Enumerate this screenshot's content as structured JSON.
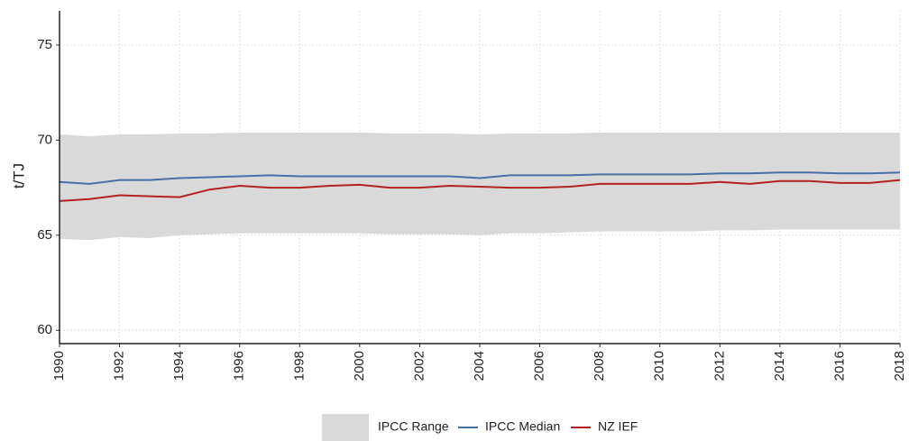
{
  "chart_data": {
    "type": "line",
    "y_label": "t/TJ",
    "x": [
      1990,
      1991,
      1992,
      1993,
      1994,
      1995,
      1996,
      1997,
      1998,
      1999,
      2000,
      2001,
      2002,
      2003,
      2004,
      2005,
      2006,
      2007,
      2008,
      2009,
      2010,
      2011,
      2012,
      2013,
      2014,
      2015,
      2016,
      2017,
      2018
    ],
    "series": [
      {
        "name": "IPCC Range",
        "color": "#d9d9d9",
        "upper": [
          70.3,
          70.2,
          70.3,
          70.3,
          70.35,
          70.35,
          70.4,
          70.4,
          70.4,
          70.4,
          70.4,
          70.35,
          70.35,
          70.35,
          70.3,
          70.35,
          70.35,
          70.35,
          70.4,
          70.4,
          70.4,
          70.4,
          70.4,
          70.4,
          70.4,
          70.4,
          70.4,
          70.4,
          70.4
        ],
        "lower": [
          64.8,
          64.75,
          64.9,
          64.85,
          65.0,
          65.05,
          65.1,
          65.1,
          65.1,
          65.1,
          65.1,
          65.05,
          65.05,
          65.05,
          65.0,
          65.1,
          65.1,
          65.15,
          65.2,
          65.2,
          65.2,
          65.2,
          65.25,
          65.25,
          65.3,
          65.3,
          65.3,
          65.3,
          65.3
        ]
      },
      {
        "name": "IPCC Median",
        "color": "#4a6fa5",
        "values": [
          67.8,
          67.7,
          67.9,
          67.9,
          68.0,
          68.05,
          68.1,
          68.15,
          68.1,
          68.1,
          68.1,
          68.1,
          68.1,
          68.1,
          68.0,
          68.15,
          68.15,
          68.15,
          68.2,
          68.2,
          68.2,
          68.2,
          68.25,
          68.25,
          68.3,
          68.3,
          68.25,
          68.25,
          68.3
        ]
      },
      {
        "name": "NZ IEF",
        "color": "#b22222",
        "values": [
          66.8,
          66.9,
          67.1,
          67.05,
          67.0,
          67.4,
          67.6,
          67.5,
          67.5,
          67.6,
          67.65,
          67.5,
          67.5,
          67.6,
          67.55,
          67.5,
          67.5,
          67.55,
          67.7,
          67.7,
          67.7,
          67.7,
          67.8,
          67.7,
          67.85,
          67.85,
          67.75,
          67.75,
          67.9
        ]
      }
    ],
    "xlim": [
      1990,
      2018
    ],
    "xticks": [
      1990,
      1992,
      1994,
      1996,
      1998,
      2000,
      2002,
      2004,
      2006,
      2008,
      2010,
      2012,
      2014,
      2016,
      2018
    ],
    "ylim": [
      59.3,
      76.8
    ],
    "yticks": [
      60,
      65,
      70,
      75
    ],
    "grid": true,
    "legend": "bottom"
  }
}
